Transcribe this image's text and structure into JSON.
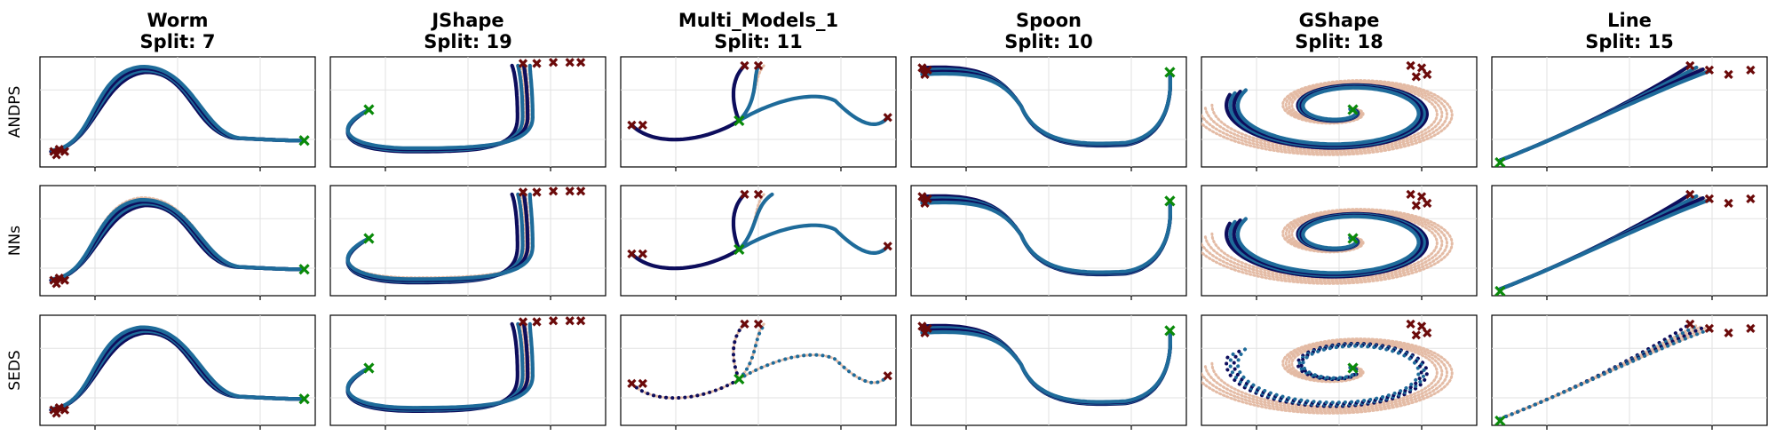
{
  "figure": {
    "columns": [
      {
        "name": "Worm",
        "split": "Split: 7"
      },
      {
        "name": "JShape",
        "split": "Split: 19"
      },
      {
        "name": "Multi_Models_1",
        "split": "Split: 11"
      },
      {
        "name": "Spoon",
        "split": "Split: 10"
      },
      {
        "name": "GShape",
        "split": "Split: 18"
      },
      {
        "name": "Line",
        "split": "Split: 15"
      }
    ],
    "rows": [
      "ANDPS",
      "NNs",
      "SEDS"
    ]
  },
  "colors": {
    "demonstration": "#e3b8a1",
    "trajectory_dark": "#0d0d5c",
    "trajectory_light": "#1e6b9a",
    "start_marker": "#6b0a0a",
    "goal_marker": "#0a8a0a",
    "grid": "#e2e2e2"
  },
  "chart_data": {
    "type": "line",
    "grid": true,
    "legend": "none",
    "markers": {
      "start": "x-marker",
      "goal": "x-marker-filled"
    }
  }
}
